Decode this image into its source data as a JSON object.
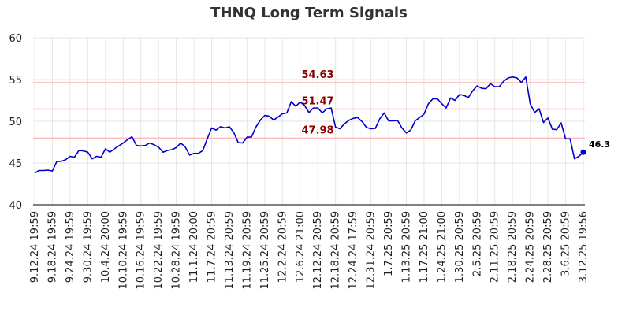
{
  "chart_data": {
    "type": "line",
    "title": "THNQ Long Term Signals",
    "xlabel": "",
    "ylabel": "",
    "ylim": [
      40,
      60
    ],
    "yticks": [
      40,
      45,
      50,
      55,
      60
    ],
    "grid": true,
    "x_tick_labels": [
      "9.12.24 19:59",
      "9.18.24 19:59",
      "9.24.24 19:59",
      "9.30.24 19:59",
      "10.4.24 20:00",
      "10.10.24 19:59",
      "10.16.24 19:59",
      "10.22.24 19:59",
      "10.28.24 19:59",
      "11.1.24 20:00",
      "11.7.24 20:59",
      "11.13.24 20:59",
      "11.19.24 20:59",
      "11.25.24 20:59",
      "12.2.24 20:59",
      "12.6.24 21:00",
      "12.12.24 20:59",
      "12.18.24 20:59",
      "12.24.24 17:59",
      "12.31.24 20:59",
      "1.7.25 20:59",
      "1.13.25 20:59",
      "1.17.25 21:00",
      "1.24.25 21:00",
      "1.30.25 20:59",
      "2.5.25 20:59",
      "2.11.25 20:59",
      "2.18.25 20:59",
      "2.24.25 20:59",
      "2.28.25 20:59",
      "3.6.25 20:59",
      "3.12.25 19:56"
    ],
    "reference_lines": [
      {
        "value": 54.63,
        "label": "54.63"
      },
      {
        "value": 51.47,
        "label": "51.47"
      },
      {
        "value": 47.98,
        "label": "47.98"
      }
    ],
    "line_color": "#0000cc",
    "reference_color": "#ffbbbb",
    "reference_label_color": "#8b0000",
    "last_point_label": "46.3",
    "series": [
      {
        "values": [
          43.8,
          44.1,
          44.1,
          44.15,
          44.05,
          45.2,
          45.2,
          45.4,
          45.8,
          45.7,
          46.5,
          46.45,
          46.3,
          45.5,
          45.8,
          45.7,
          46.7,
          46.3,
          46.7,
          47.05,
          47.4,
          47.8,
          48.15,
          47.1,
          47.05,
          47.1,
          47.4,
          47.2,
          46.9,
          46.3,
          46.5,
          46.6,
          46.85,
          47.4,
          46.95,
          45.95,
          46.15,
          46.15,
          46.5,
          47.9,
          49.2,
          48.95,
          49.35,
          49.2,
          49.35,
          48.65,
          47.45,
          47.4,
          48.1,
          48.1,
          49.3,
          50.15,
          50.7,
          50.6,
          50.15,
          50.5,
          50.9,
          51.0,
          52.35,
          51.8,
          52.3,
          51.9,
          51.05,
          51.6,
          51.6,
          51.0,
          51.5,
          51.6,
          49.3,
          49.1,
          49.7,
          50.1,
          50.35,
          50.45,
          49.95,
          49.25,
          49.1,
          49.15,
          50.3,
          51.0,
          50.05,
          50.05,
          50.1,
          49.2,
          48.6,
          48.95,
          50.05,
          50.45,
          50.85,
          52.1,
          52.7,
          52.7,
          52.1,
          51.6,
          52.8,
          52.5,
          53.2,
          53.1,
          52.85,
          53.65,
          54.25,
          53.95,
          53.9,
          54.5,
          54.15,
          54.15,
          54.8,
          55.2,
          55.3,
          55.2,
          54.65,
          55.3,
          52.1,
          51.05,
          51.5,
          49.85,
          50.4,
          49.05,
          49.0,
          49.8,
          47.9,
          47.9,
          45.5,
          45.8,
          46.3
        ]
      }
    ]
  }
}
